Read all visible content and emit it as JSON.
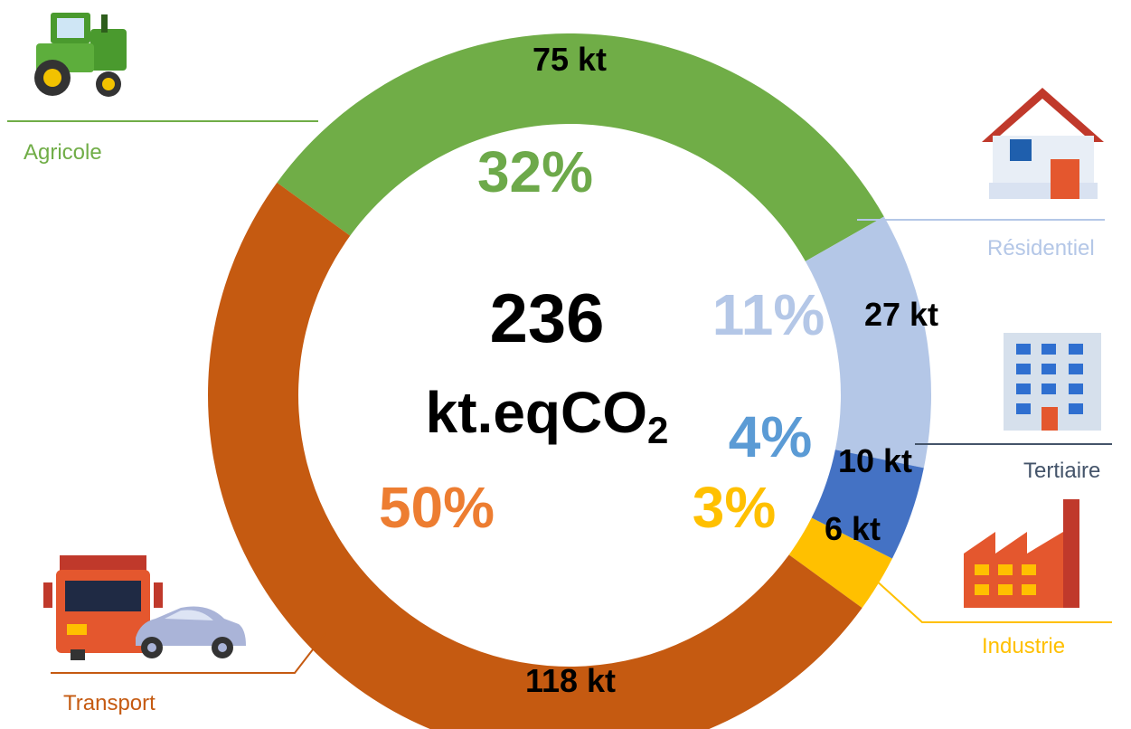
{
  "chart_data": {
    "type": "pie",
    "style": "donut",
    "total": {
      "value": "236",
      "unit_main": "kt.eqCO",
      "unit_sub": "2"
    },
    "slices": [
      {
        "label": "Agricole",
        "value": 75,
        "value_label": "75 kt",
        "percent_label": "32%",
        "color": "#70AD47",
        "pct_color": "#6DA94A",
        "label_color": "#70AD47",
        "icon": "tractor-icon"
      },
      {
        "label": "Résidentiel",
        "value": 27,
        "value_label": "27 kt",
        "percent_label": "11%",
        "color": "#B4C7E7",
        "pct_color": "#B4C7E7",
        "label_color": "#B4C7E7",
        "icon": "house-icon"
      },
      {
        "label": "Tertiaire",
        "value": 10,
        "value_label": "10 kt",
        "percent_label": "4%",
        "color": "#4472C4",
        "pct_color": "#5B9BD5",
        "label_color": "#44546A",
        "icon": "office-building-icon"
      },
      {
        "label": "Industrie",
        "value": 6,
        "value_label": "6 kt",
        "percent_label": "3%",
        "color": "#FFC000",
        "pct_color": "#FFC000",
        "label_color": "#FFC000",
        "icon": "factory-icon"
      },
      {
        "label": "Transport",
        "value": 118,
        "value_label": "118 kt",
        "percent_label": "50%",
        "color": "#C55A11",
        "pct_color": "#ED7D31",
        "label_color": "#C55A11",
        "icon": "truck-and-car-icon"
      }
    ]
  }
}
